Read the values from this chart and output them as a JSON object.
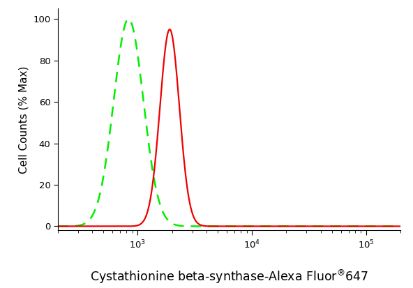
{
  "title": "",
  "xlabel_main": "Cystathionine beta-synthase-Alexa Fluor",
  "xlabel_super": "®",
  "xlabel_number": "647",
  "ylabel": "Cell Counts (% Max)",
  "xlim": [
    200,
    200000
  ],
  "ylim": [
    -2,
    105
  ],
  "yticks": [
    0,
    20,
    40,
    60,
    80,
    100
  ],
  "green_color": "#00ee00",
  "red_color": "#ee0000",
  "green_peak_log": 2.92,
  "green_sigma_log": 0.13,
  "green_peak_height": 100,
  "red_peak_log": 3.28,
  "red_sigma_log": 0.085,
  "red_peak_height": 95,
  "bg_color": "#ffffff",
  "spine_color": "#000000"
}
